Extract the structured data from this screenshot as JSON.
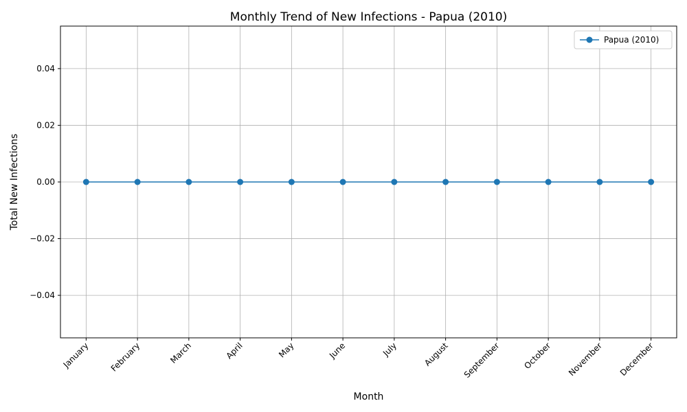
{
  "chart_data": {
    "type": "line",
    "title": "Monthly Trend of New Infections - Papua (2010)",
    "xlabel": "Month",
    "ylabel": "Total New Infections",
    "categories": [
      "January",
      "February",
      "March",
      "April",
      "May",
      "June",
      "July",
      "August",
      "September",
      "October",
      "November",
      "December"
    ],
    "series": [
      {
        "name": "Papua (2010)",
        "values": [
          0,
          0,
          0,
          0,
          0,
          0,
          0,
          0,
          0,
          0,
          0,
          0
        ],
        "color": "#1f77b4",
        "marker": "circle"
      }
    ],
    "ylim": [
      -0.055,
      0.055
    ],
    "yticks": [
      -0.04,
      -0.02,
      0.0,
      0.02,
      0.04
    ],
    "ytick_labels": [
      "−0.04",
      "−0.02",
      "0.00",
      "0.02",
      "0.04"
    ],
    "grid": true,
    "legend_position": "top-right"
  }
}
